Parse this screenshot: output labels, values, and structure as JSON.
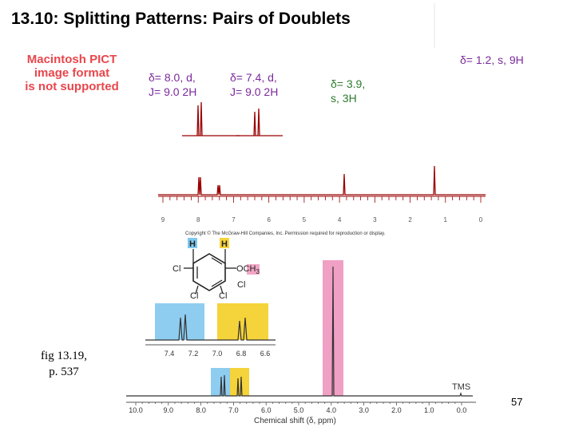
{
  "slide": {
    "title": "13.10: Splitting Patterns: Pairs of Doublets",
    "pict_notice": [
      "Macintosh PICT",
      "image format",
      "is not supported"
    ],
    "figure_caption": [
      "fig 13.19,",
      "p. 537"
    ],
    "page_number": "57",
    "copyright": "Copyright © The McGraw-Hill Companies, Inc. Permission required for reproduction or display."
  },
  "annotations": {
    "peak_8_0": [
      "δ= 8.0, d,",
      "J= 9.0 2H"
    ],
    "peak_7_4": [
      "δ= 7.4, d,",
      "J= 9.0 2H"
    ],
    "peak_3_9": [
      "δ= 3.9,",
      "s, 3H"
    ],
    "peak_1_2": "δ= 1.2, s, 9H",
    "colors": {
      "purple": "#7a2a9c",
      "green": "#2c7a2c",
      "spectrum": "#8b0000"
    }
  },
  "top_spectrum": {
    "axis_ticks": [
      "9",
      "8",
      "7",
      "6",
      "5",
      "4",
      "3",
      "2",
      "1",
      "0"
    ],
    "peaks_ppm": [
      8.0,
      7.4,
      3.9,
      1.2
    ]
  },
  "molecule": {
    "substituents": [
      "H",
      "H",
      "OCH",
      "3",
      "Cl",
      "Cl",
      "Cl",
      "Cl"
    ],
    "colors": {
      "h_left": "#7ec8ee",
      "h_right": "#f5d33a",
      "och3": "#f2a6c4"
    }
  },
  "bottom_spectrum": {
    "axis_title": "Chemical shift (δ, ppm)",
    "axis_ticks": [
      "10.0",
      "9.0",
      "8.0",
      "7.0",
      "6.0",
      "5.0",
      "4.0",
      "3.0",
      "2.0",
      "1.0",
      "0.0"
    ],
    "inset_ticks": [
      "7.4",
      "7.2",
      "7.0",
      "6.8",
      "6.6"
    ],
    "tms_label": "TMS",
    "peaks_ppm": [
      7.4,
      7.0,
      3.9
    ],
    "colors": {
      "blue": "#8ecdf0",
      "yellow": "#f5d33a",
      "pink": "#f0a0c4"
    }
  }
}
